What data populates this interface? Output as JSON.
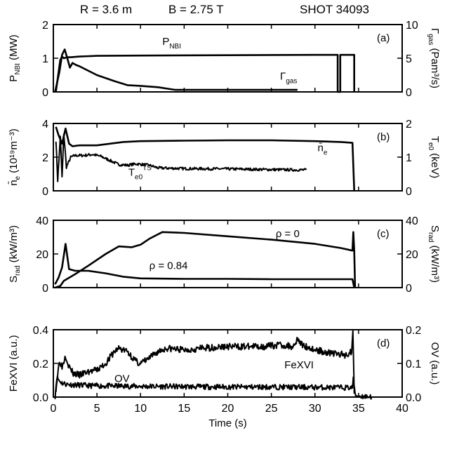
{
  "header": {
    "radius": "R = 3.6 m",
    "field": "B = 2.75 T",
    "shot": "SHOT 34093"
  },
  "chart_data": [
    {
      "type": "line",
      "panel": "(a)",
      "xlim": [
        0,
        40
      ],
      "left_axis": {
        "ylim": [
          0,
          2
        ],
        "ticks": [
          0,
          1,
          2
        ],
        "label": "P_NBI (MW)"
      },
      "right_axis": {
        "ylim": [
          0,
          10
        ],
        "ticks": [
          0,
          5,
          10
        ],
        "label": "Γ_gas (Pam³/s)"
      },
      "series": [
        {
          "name": "P_NBI",
          "axis": "left",
          "x": [
            0.3,
            0.8,
            1.0,
            1.2,
            1.6,
            2.0,
            3,
            5,
            10,
            20,
            30,
            32.6,
            32.6,
            32.9,
            32.9,
            34.5,
            34.5
          ],
          "y": [
            0.02,
            0.95,
            1.05,
            1.0,
            1.03,
            1.03,
            1.05,
            1.07,
            1.08,
            1.09,
            1.1,
            1.1,
            0,
            0,
            1.1,
            1.1,
            0
          ]
        },
        {
          "name": "Γ_gas",
          "axis": "right",
          "x": [
            0.2,
            0.7,
            1.0,
            1.3,
            1.6,
            1.9,
            2.2,
            2.6,
            3.0,
            5,
            7,
            8.5,
            10,
            12,
            14,
            28
          ],
          "y": [
            0,
            3,
            5.5,
            6.3,
            5,
            3.6,
            4.3,
            4.0,
            3.8,
            2.5,
            1.6,
            1.0,
            0.9,
            0.7,
            0.3,
            0.3
          ]
        }
      ]
    },
    {
      "type": "line",
      "panel": "(b)",
      "xlim": [
        0,
        40
      ],
      "left_axis": {
        "ylim": [
          0,
          4
        ],
        "ticks": [
          0,
          2,
          4
        ],
        "label": "n̄_e (10¹⁹m⁻³)"
      },
      "right_axis": {
        "ylim": [
          0,
          2
        ],
        "ticks": [
          0,
          1,
          2
        ],
        "label": "T_e0 (keV)"
      },
      "series": [
        {
          "name": "n̄_e",
          "axis": "left",
          "x": [
            0.3,
            0.6,
            1.0,
            1.4,
            1.8,
            2.2,
            3,
            5,
            8,
            10,
            15,
            20,
            25,
            30,
            33,
            34.3,
            34.5
          ],
          "y": [
            3.8,
            3.3,
            2.8,
            3.7,
            2.8,
            2.65,
            2.7,
            2.7,
            2.9,
            2.95,
            2.98,
            3.0,
            3.0,
            2.95,
            2.9,
            2.85,
            0
          ]
        },
        {
          "name": "T_e0 TS",
          "axis": "right",
          "noise": 0.04,
          "seed": 7,
          "x": [
            0.3,
            0.5,
            0.8,
            1.0,
            1.2,
            1.5,
            2.0,
            2.5,
            3.5,
            4.5,
            5.5,
            6.5,
            7.5,
            8.5,
            9.5,
            11,
            12,
            15,
            20,
            25,
            29
          ],
          "y": [
            1.5,
            0.3,
            1.6,
            0.4,
            1.7,
            0.7,
            1.0,
            1.05,
            1.05,
            1.08,
            1.02,
            0.9,
            0.78,
            0.76,
            0.8,
            0.76,
            0.68,
            0.66,
            0.65,
            0.63,
            0.62
          ]
        }
      ]
    },
    {
      "type": "line",
      "panel": "(c)",
      "xlim": [
        0,
        40
      ],
      "left_axis": {
        "ylim": [
          0,
          40
        ],
        "ticks": [
          0,
          20,
          40
        ],
        "label": "S_rad (kW/m³)"
      },
      "right_axis": {
        "ylim": [
          0,
          40
        ],
        "ticks": [
          0,
          20,
          40
        ],
        "label": "S_rad (kW/m³)"
      },
      "series": [
        {
          "name": "ρ = 0",
          "axis": "left",
          "x": [
            0.2,
            0.8,
            1.2,
            2.5,
            4,
            6,
            7.5,
            9,
            10,
            11,
            12.5,
            15,
            20,
            25,
            30,
            33,
            34.3,
            34.4,
            34.5,
            34.6
          ],
          "y": [
            0,
            1,
            4,
            8,
            13,
            20,
            24.5,
            24,
            25.5,
            29,
            33,
            32.5,
            30.5,
            28.5,
            26,
            23.5,
            22,
            33,
            22,
            0
          ]
        },
        {
          "name": "ρ = 0.84",
          "axis": "left",
          "x": [
            0.2,
            0.6,
            1.0,
            1.4,
            1.8,
            2.5,
            4,
            6,
            8,
            10,
            15,
            20,
            25,
            30,
            34.3,
            34.5
          ],
          "y": [
            2,
            6,
            12,
            26,
            11,
            10,
            10,
            8.5,
            6.5,
            5.5,
            5.2,
            5.2,
            5.0,
            5.0,
            5.0,
            0
          ]
        }
      ]
    },
    {
      "type": "line",
      "panel": "(d)",
      "xlim": [
        0,
        40
      ],
      "left_axis": {
        "ylim": [
          0,
          0.4
        ],
        "ticks": [
          "0.0",
          "0.2",
          "0.4"
        ],
        "label": "FeXVI (a.u.)"
      },
      "right_axis": {
        "ylim": [
          0,
          0.2
        ],
        "ticks": [
          "0.0",
          "0.1",
          "0.2"
        ],
        "label": "OV (a.u.)"
      },
      "x_axis": {
        "ticks": [
          0,
          5,
          10,
          15,
          20,
          25,
          30,
          35,
          40
        ],
        "label": "Time (s)"
      },
      "series": [
        {
          "name": "FeXVI",
          "axis": "left",
          "noise": 0.02,
          "seed": 3,
          "x": [
            0.3,
            0.7,
            1.0,
            1.4,
            1.8,
            2.3,
            3,
            4,
            5,
            6,
            7,
            7.5,
            8.5,
            9.5,
            10,
            11,
            12,
            13,
            15,
            17,
            20,
            22,
            24,
            26,
            27.5,
            28,
            28.5,
            30,
            32,
            33.5,
            34.2,
            34.35,
            34.5
          ],
          "y": [
            0.05,
            0.22,
            0.18,
            0.25,
            0.18,
            0.14,
            0.13,
            0.15,
            0.16,
            0.2,
            0.27,
            0.29,
            0.27,
            0.21,
            0.2,
            0.23,
            0.27,
            0.29,
            0.28,
            0.29,
            0.3,
            0.3,
            0.3,
            0.31,
            0.3,
            0.35,
            0.31,
            0.28,
            0.26,
            0.25,
            0.27,
            0.4,
            0.02
          ]
        },
        {
          "name": "OV",
          "axis": "right",
          "noise": 0.008,
          "seed": 11,
          "x": [
            0.2,
            0.4,
            0.7,
            1.0,
            1.5,
            2.5,
            4,
            6,
            10,
            15,
            20,
            25,
            30,
            34.3,
            34.4,
            34.6,
            35,
            36.5
          ],
          "y": [
            0.002,
            0.06,
            0.048,
            0.042,
            0.038,
            0.036,
            0.034,
            0.033,
            0.032,
            0.031,
            0.03,
            0.03,
            0.029,
            0.028,
            0.06,
            0.005,
            0.003,
            0.001
          ]
        }
      ]
    }
  ]
}
